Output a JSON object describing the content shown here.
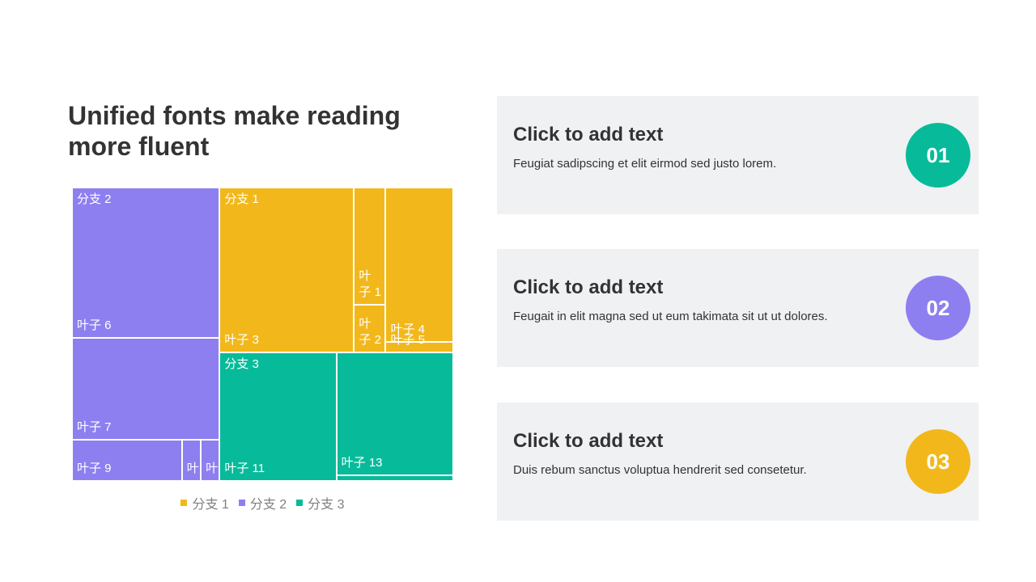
{
  "title": "Unified fonts make reading more fluent",
  "colors": {
    "branch1": "#f2b81b",
    "branch2": "#8e7ff0",
    "branch3": "#07bb9a"
  },
  "chart_data": {
    "type": "treemap",
    "legend": {
      "position": "bottom",
      "entries": [
        "分支 1",
        "分支 2",
        "分支 3"
      ]
    },
    "branches": [
      {
        "name": "分支 2",
        "color": "#8e7ff0",
        "leaves": [
          {
            "label": "叶子 6",
            "value": 34
          },
          {
            "label": "叶子 7",
            "value": 23
          },
          {
            "label": "叶子 9",
            "value": 7
          },
          {
            "label": "叶…",
            "value": 1.2
          },
          {
            "label": "叶…",
            "value": 1.2
          }
        ]
      },
      {
        "name": "分支 1",
        "color": "#f2b81b",
        "leaves": [
          {
            "label": "叶子 3",
            "value": 34
          },
          {
            "label": "叶子 1",
            "value": 5.7
          },
          {
            "label": "叶子 2",
            "value": 2.3
          },
          {
            "label": "叶子 4",
            "value": 16
          },
          {
            "label": "叶子 5",
            "value": 1.1
          }
        ]
      },
      {
        "name": "分支 3",
        "color": "#07bb9a",
        "leaves": [
          {
            "label": "叶子 11",
            "value": 23
          },
          {
            "label": "叶子 13",
            "value": 22
          },
          {
            "label": "",
            "value": 1
          }
        ]
      }
    ]
  },
  "cards": [
    {
      "title": "Click to add text",
      "body": "Feugiat sadipscing et elit eirmod sed justo lorem.",
      "number": "01",
      "color": "#07bb9a"
    },
    {
      "title": "Click to add text",
      "body": "Feugait in elit magna sed ut eum takimata sit ut ut dolores.",
      "number": "02",
      "color": "#8e7ff0"
    },
    {
      "title": "Click to add text",
      "body": "Duis rebum sanctus voluptua hendrerit sed consetetur.",
      "number": "03",
      "color": "#f2b81b"
    }
  ]
}
